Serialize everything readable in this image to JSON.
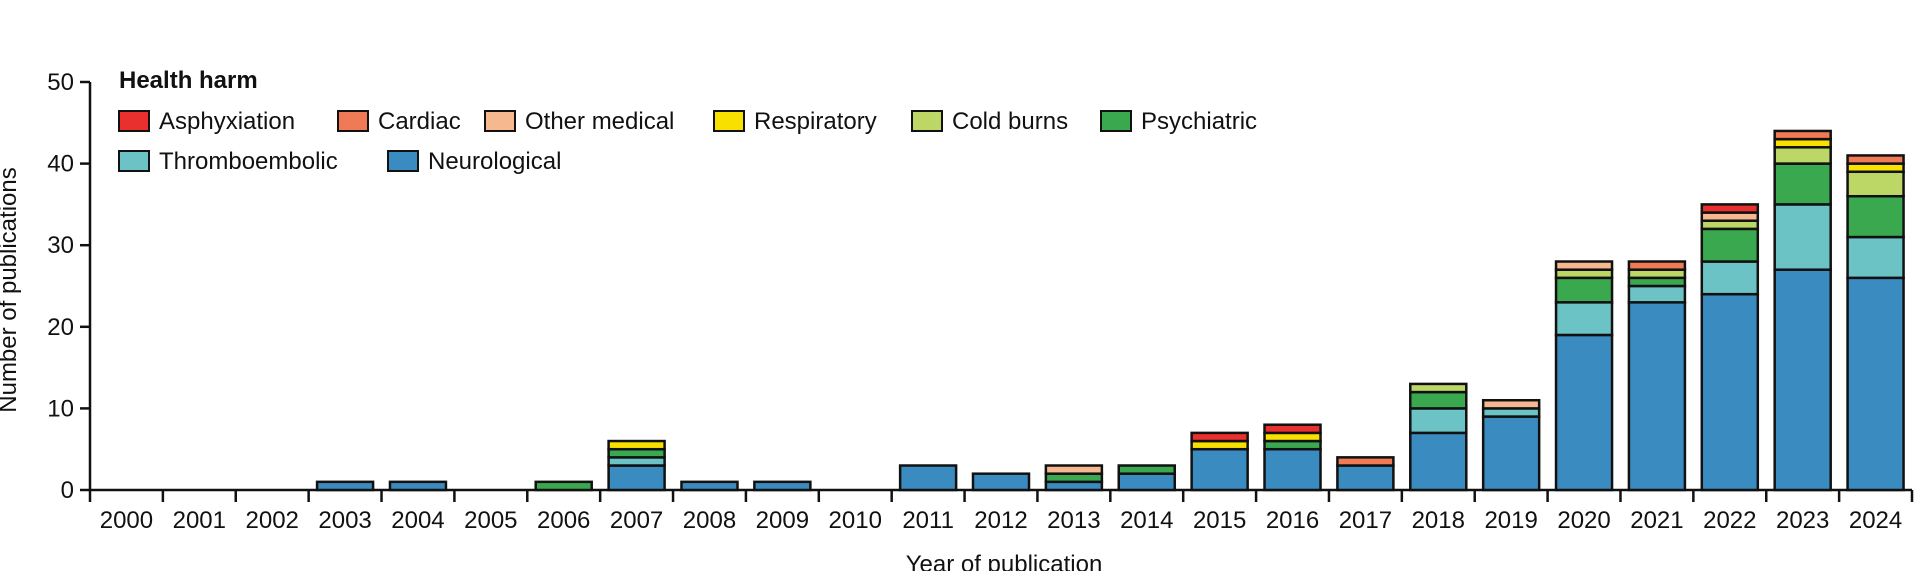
{
  "chart_data": {
    "type": "bar",
    "stacked": true,
    "xlabel": "Year of publication",
    "ylabel": "Number of publications",
    "ylim": [
      0,
      50
    ],
    "yticks": [
      0,
      10,
      20,
      30,
      40,
      50
    ],
    "legend_title": "Health harm",
    "legend_position": "top-left",
    "categories": [
      "2000",
      "2001",
      "2002",
      "2003",
      "2004",
      "2005",
      "2006",
      "2007",
      "2008",
      "2009",
      "2010",
      "2011",
      "2012",
      "2013",
      "2014",
      "2015",
      "2016",
      "2017",
      "2018",
      "2019",
      "2020",
      "2021",
      "2022",
      "2023",
      "2024"
    ],
    "series": [
      {
        "name": "Neurological",
        "color": "#3a8bbf",
        "values": [
          0,
          0,
          0,
          1,
          1,
          0,
          0,
          3,
          1,
          1,
          0,
          3,
          2,
          1,
          2,
          5,
          5,
          3,
          7,
          9,
          19,
          23,
          24,
          27,
          26
        ]
      },
      {
        "name": "Thromboembolic",
        "color": "#6cc3c6",
        "values": [
          0,
          0,
          0,
          0,
          0,
          0,
          0,
          1,
          0,
          0,
          0,
          0,
          0,
          0,
          0,
          0,
          0,
          0,
          3,
          1,
          4,
          2,
          4,
          8,
          5
        ]
      },
      {
        "name": "Psychiatric",
        "color": "#3aa84f",
        "values": [
          0,
          0,
          0,
          0,
          0,
          0,
          1,
          1,
          0,
          0,
          0,
          0,
          0,
          1,
          1,
          0,
          1,
          0,
          2,
          0,
          3,
          1,
          4,
          5,
          5
        ]
      },
      {
        "name": "Cold burns",
        "color": "#bcd765",
        "values": [
          0,
          0,
          0,
          0,
          0,
          0,
          0,
          0,
          0,
          0,
          0,
          0,
          0,
          0,
          0,
          0,
          0,
          0,
          1,
          0,
          1,
          1,
          1,
          2,
          3
        ]
      },
      {
        "name": "Respiratory",
        "color": "#f8e000",
        "values": [
          0,
          0,
          0,
          0,
          0,
          0,
          0,
          1,
          0,
          0,
          0,
          0,
          0,
          0,
          0,
          1,
          1,
          0,
          0,
          0,
          0,
          0,
          0,
          1,
          1
        ]
      },
      {
        "name": "Other medical",
        "color": "#f6b98f",
        "values": [
          0,
          0,
          0,
          0,
          0,
          0,
          0,
          0,
          0,
          0,
          0,
          0,
          0,
          1,
          0,
          0,
          0,
          0,
          0,
          1,
          1,
          0,
          1,
          0,
          0
        ]
      },
      {
        "name": "Cardiac",
        "color": "#f07a55",
        "values": [
          0,
          0,
          0,
          0,
          0,
          0,
          0,
          0,
          0,
          0,
          0,
          0,
          0,
          0,
          0,
          0,
          0,
          1,
          0,
          0,
          0,
          1,
          0,
          1,
          1
        ]
      },
      {
        "name": "Asphyxiation",
        "color": "#ea2f2f",
        "values": [
          0,
          0,
          0,
          0,
          0,
          0,
          0,
          0,
          0,
          0,
          0,
          0,
          0,
          0,
          0,
          1,
          1,
          0,
          0,
          0,
          0,
          0,
          1,
          0,
          0
        ]
      }
    ],
    "legend_order": [
      "Asphyxiation",
      "Cardiac",
      "Other medical",
      "Respiratory",
      "Cold burns",
      "Psychiatric",
      "Thromboembolic",
      "Neurological"
    ]
  }
}
